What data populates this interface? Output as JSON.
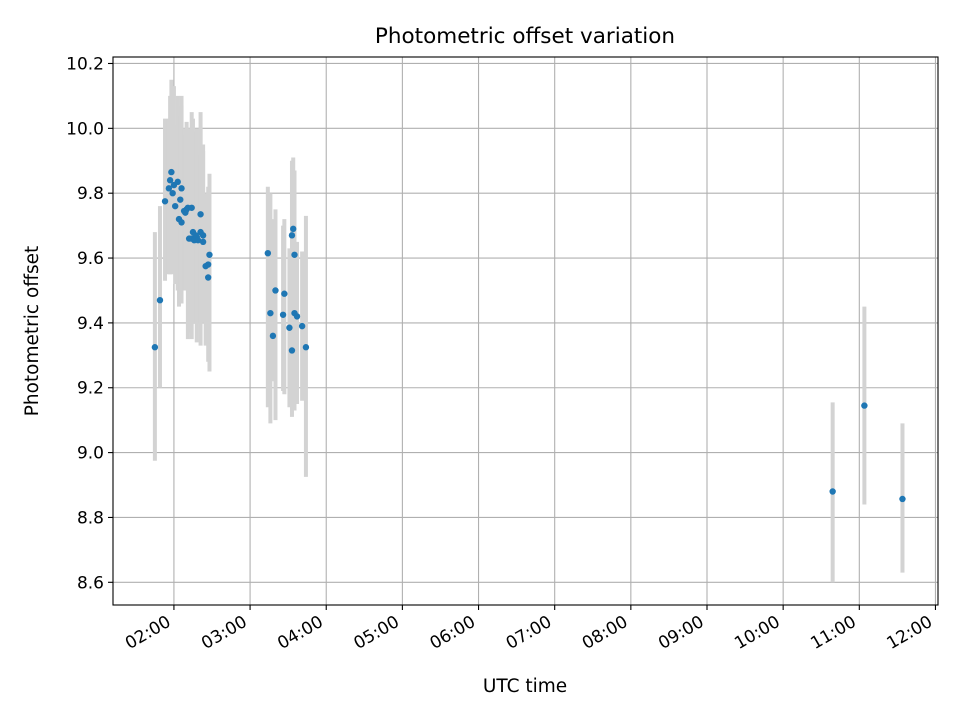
{
  "chart_data": {
    "type": "scatter",
    "title": "Photometric offset variation",
    "xlabel": "UTC time",
    "ylabel": "Photometric offset",
    "x_unit": "UTC hours",
    "xlim": [
      "01:12",
      "12:02"
    ],
    "ylim": [
      8.53,
      10.22
    ],
    "x_ticks": [
      "02:00",
      "03:00",
      "04:00",
      "05:00",
      "06:00",
      "07:00",
      "08:00",
      "09:00",
      "10:00",
      "11:00",
      "12:00"
    ],
    "y_ticks": [
      "8.6",
      "8.8",
      "9.0",
      "9.2",
      "9.4",
      "9.6",
      "9.8",
      "10.0",
      "10.2"
    ],
    "grid": true,
    "colors": {
      "points": "#1f77b4",
      "errorbars": "#d3d3d3",
      "grid": "#b0b0b0"
    },
    "series": [
      {
        "x": [
          "01:45",
          "01:49",
          "01:53",
          "01:56",
          "01:57",
          "01:58",
          "01:59",
          "02:00",
          "02:01",
          "02:03",
          "02:04",
          "02:05",
          "02:06",
          "02:06",
          "02:08",
          "02:09",
          "02:10",
          "02:11",
          "02:12",
          "02:14",
          "02:14",
          "02:15",
          "02:16",
          "02:17",
          "02:18",
          "02:19",
          "02:21",
          "02:21",
          "02:23",
          "02:23",
          "02:25",
          "02:27",
          "02:27",
          "02:28",
          "03:14",
          "03:16",
          "03:18",
          "03:20",
          "03:26",
          "03:27",
          "03:31",
          "03:33",
          "03:33",
          "03:34",
          "03:35",
          "03:35",
          "03:37",
          "03:41",
          "03:44"
        ],
        "y": [
          9.325,
          9.47,
          9.775,
          9.815,
          9.84,
          9.865,
          9.8,
          9.825,
          9.76,
          9.835,
          9.72,
          9.78,
          9.71,
          9.815,
          9.745,
          9.74,
          9.75,
          9.755,
          9.66,
          9.66,
          9.755,
          9.68,
          9.655,
          9.67,
          9.665,
          9.655,
          9.68,
          9.735,
          9.65,
          9.67,
          9.575,
          9.58,
          9.54,
          9.61,
          9.615,
          9.43,
          9.36,
          9.5,
          9.425,
          9.49,
          9.385,
          9.315,
          9.67,
          9.69,
          9.61,
          9.43,
          9.42,
          9.39,
          9.325
        ],
        "err_low": [
          8.975,
          9.2,
          9.53,
          9.55,
          9.55,
          9.6,
          9.55,
          9.58,
          9.52,
          9.5,
          9.45,
          9.46,
          9.46,
          9.5,
          9.5,
          9.5,
          9.52,
          9.35,
          9.37,
          9.41,
          9.35,
          9.4,
          9.4,
          9.45,
          9.34,
          9.4,
          9.44,
          9.33,
          9.4,
          9.45,
          9.33,
          9.35,
          9.28,
          9.25,
          9.14,
          9.09,
          9.22,
          9.1,
          9.19,
          9.18,
          9.14,
          9.11,
          9.4,
          9.5,
          9.35,
          9.13,
          9.15,
          9.16,
          8.925
        ],
        "err_high": [
          9.68,
          9.76,
          10.03,
          10.03,
          10.1,
          10.15,
          10.06,
          10.13,
          10.01,
          10.1,
          10.0,
          10.04,
          10.1,
          10.07,
          10.0,
          9.98,
          10.02,
          10.0,
          10.0,
          9.96,
          10.05,
          10.03,
          9.95,
          9.99,
          10.0,
          9.92,
          10.0,
          10.05,
          9.93,
          9.95,
          9.8,
          9.82,
          9.8,
          9.86,
          9.82,
          9.8,
          9.72,
          9.75,
          9.7,
          9.72,
          9.63,
          9.52,
          9.9,
          9.91,
          9.87,
          9.62,
          9.65,
          9.62,
          9.73
        ]
      },
      {
        "x": [
          "10:39",
          "11:04",
          "11:34"
        ],
        "y": [
          8.88,
          9.145,
          8.857
        ],
        "err_low": [
          8.6,
          8.84,
          8.63
        ],
        "err_high": [
          9.155,
          9.45,
          9.09
        ]
      }
    ]
  }
}
